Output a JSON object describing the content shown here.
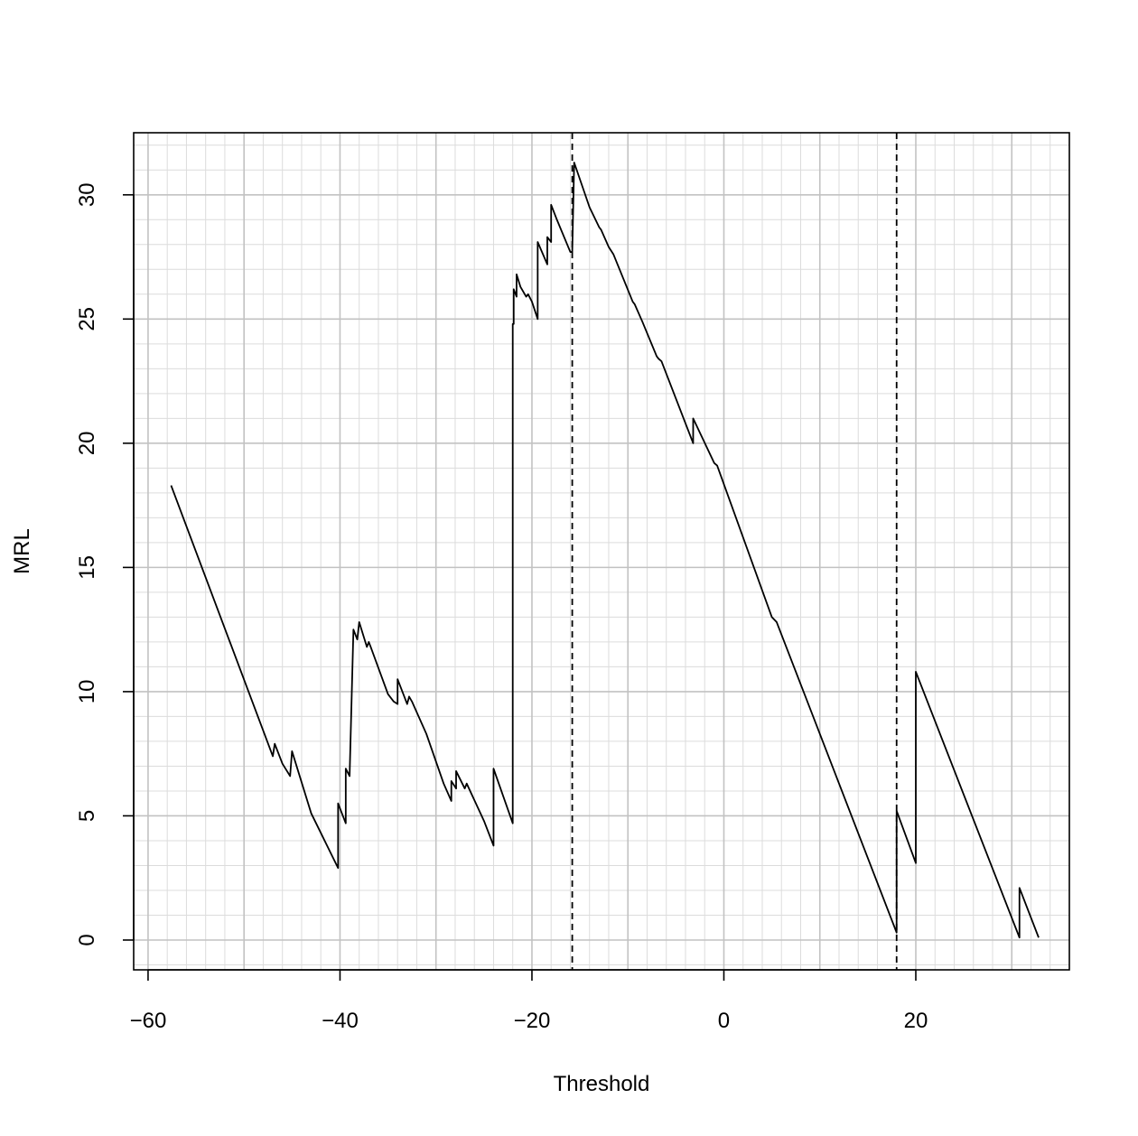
{
  "chart_data": {
    "type": "line",
    "title": "",
    "xlabel": "Threshold",
    "ylabel": "MRL",
    "xlim": [
      -61.5,
      36
    ],
    "ylim": [
      -1.2,
      32.5
    ],
    "xticks": [
      -60,
      -40,
      -20,
      0,
      20
    ],
    "xtick_labels": [
      "−60",
      "−40",
      "−20",
      "0",
      "20"
    ],
    "yticks": [
      0,
      5,
      10,
      15,
      20,
      25,
      30
    ],
    "ytick_labels": [
      "0",
      "5",
      "10",
      "15",
      "20",
      "25",
      "30"
    ],
    "grid": true,
    "grid_major_x_step": 10,
    "grid_minor_x_step": 2,
    "grid_major_y_step": 5,
    "grid_minor_y_step": 1,
    "vertical_dashed_lines": [
      -15.8,
      18
    ],
    "series": [
      {
        "x": [
          -57.6,
          -47.0,
          -46.8,
          -46.0,
          -45.2,
          -45.0,
          -43.0,
          -40.2,
          -40.2,
          -39.4,
          -39.4,
          -39.0,
          -38.6,
          -38.6,
          -38.2,
          -38.0,
          -37.2,
          -37.0,
          -36.8,
          -35.0,
          -34.4,
          -34.0,
          -34.0,
          -33.0,
          -32.8,
          -32.5,
          -31.0,
          -29.2,
          -28.4,
          -28.4,
          -27.9,
          -27.9,
          -27.0,
          -26.8,
          -25.0,
          -24.0,
          -24.0,
          -22.0,
          -22.0,
          -21.9,
          -21.9,
          -21.6,
          -21.6,
          -21.2,
          -20.6,
          -20.4,
          -20.0,
          -19.4,
          -19.4,
          -18.4,
          -18.4,
          -18.0,
          -18.0,
          -17.4,
          -16.0,
          -15.8,
          -15.6,
          -14.0,
          -13.0,
          -12.8,
          -12.0,
          -11.5,
          -9.5,
          -9.3,
          -8.5,
          -7.0,
          -6.8,
          -6.5,
          -3.2,
          -3.2,
          -1.0,
          -0.7,
          5.0,
          5.5,
          11.5,
          18.0,
          18.0,
          20.0,
          20.0,
          30.8,
          30.8,
          32.8
        ],
        "y": [
          18.3,
          7.4,
          7.9,
          7.1,
          6.6,
          7.6,
          5.1,
          2.9,
          5.5,
          4.7,
          6.9,
          6.6,
          12.5,
          12.5,
          12.1,
          12.8,
          11.8,
          12.0,
          11.8,
          9.9,
          9.6,
          9.5,
          10.5,
          9.5,
          9.8,
          9.6,
          8.3,
          6.3,
          5.6,
          6.4,
          6.1,
          6.8,
          6.1,
          6.3,
          4.8,
          3.8,
          6.9,
          4.7,
          24.8,
          24.8,
          26.2,
          25.9,
          26.8,
          26.3,
          25.9,
          26.0,
          25.7,
          25.0,
          28.1,
          27.2,
          28.3,
          28.1,
          29.6,
          29.0,
          27.7,
          27.7,
          31.3,
          29.5,
          28.7,
          28.6,
          27.9,
          27.6,
          25.7,
          25.6,
          24.9,
          23.5,
          23.4,
          23.3,
          20.0,
          21.0,
          19.2,
          19.1,
          13.0,
          12.8,
          6.8,
          0.3,
          5.2,
          3.1,
          10.8,
          0.1,
          2.1,
          0.1
        ]
      }
    ]
  }
}
